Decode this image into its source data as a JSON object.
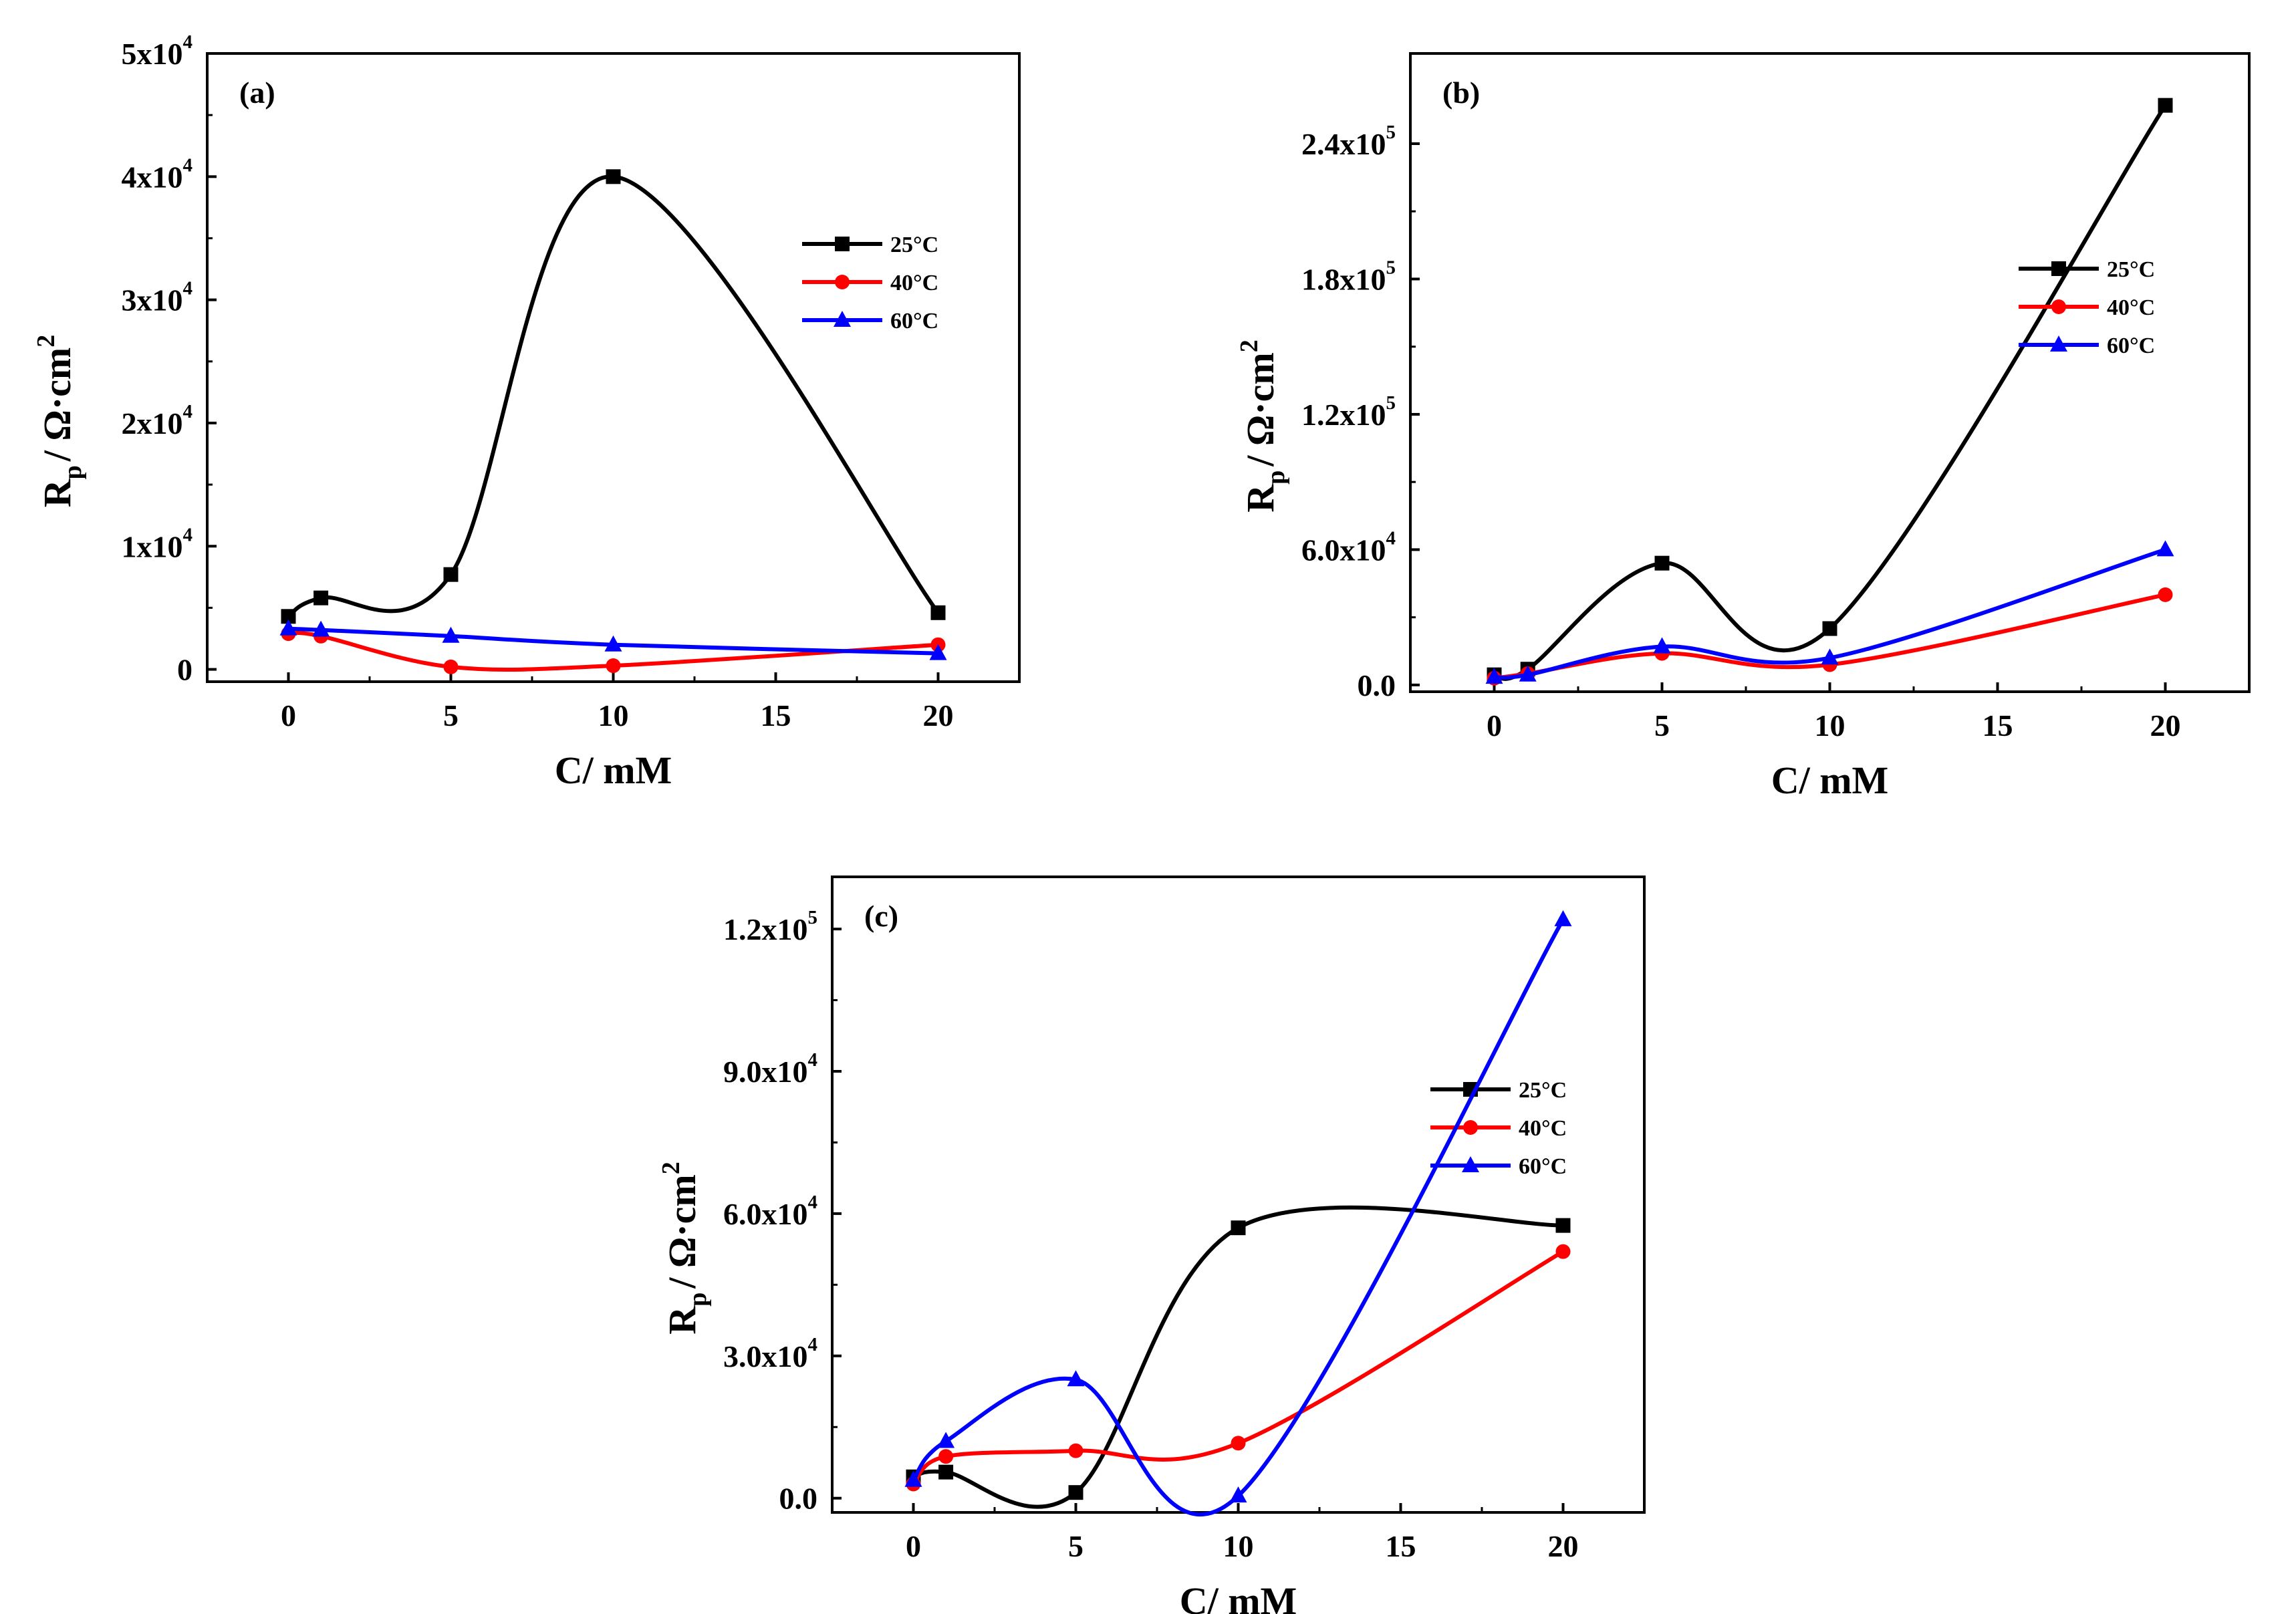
{
  "figure": {
    "panels_count": 3,
    "colors": {
      "25C": "#000000",
      "40C": "#ff0000",
      "60C": "#0000ff"
    }
  },
  "chart_data": [
    {
      "id": "a",
      "type": "line",
      "label": "(a)",
      "xlabel": "C/  mM",
      "ylabel_main": "R",
      "ylabel_sub": "p",
      "ylabel_rest": "/  Ω·cm",
      "ylabel_sup": "2",
      "xlim": [
        -2.5,
        22.5
      ],
      "ylim": [
        -1000,
        50000
      ],
      "xticks": [
        {
          "value": 0,
          "label": "0"
        },
        {
          "value": 5,
          "label": "5"
        },
        {
          "value": 10,
          "label": "10"
        },
        {
          "value": 15,
          "label": "15"
        },
        {
          "value": 20,
          "label": "20"
        }
      ],
      "yticks": [
        {
          "value": 0,
          "base": "0",
          "exp": ""
        },
        {
          "value": 10000,
          "base": "1x10",
          "exp": "4"
        },
        {
          "value": 20000,
          "base": "2x10",
          "exp": "4"
        },
        {
          "value": 30000,
          "base": "3x10",
          "exp": "4"
        },
        {
          "value": 40000,
          "base": "4x10",
          "exp": "4"
        },
        {
          "value": 50000,
          "base": "5x10",
          "exp": "4"
        }
      ],
      "series": [
        {
          "name": "25°C",
          "color": "#000000",
          "marker": "square",
          "x": [
            0,
            1,
            5,
            10,
            20
          ],
          "y": [
            4300,
            5800,
            7700,
            40000,
            4600
          ]
        },
        {
          "name": "40°C",
          "color": "#ff0000",
          "marker": "circle",
          "x": [
            0,
            1,
            5,
            10,
            20
          ],
          "y": [
            2900,
            2700,
            200,
            300,
            2000
          ]
        },
        {
          "name": "60°C",
          "color": "#0000ff",
          "marker": "triangle",
          "x": [
            0,
            1,
            5,
            10,
            20
          ],
          "y": [
            3300,
            3200,
            2700,
            2000,
            1300
          ]
        }
      ],
      "legend_position": "upper-right"
    },
    {
      "id": "b",
      "type": "line",
      "label": "(b)",
      "xlabel": "C/  mM",
      "ylabel_main": "R",
      "ylabel_sub": "p",
      "ylabel_rest": "/  Ω·cm",
      "ylabel_sup": "2",
      "xlim": [
        -2.5,
        22.5
      ],
      "ylim": [
        -3000,
        280000
      ],
      "xticks": [
        {
          "value": 0,
          "label": "0"
        },
        {
          "value": 5,
          "label": "5"
        },
        {
          "value": 10,
          "label": "10"
        },
        {
          "value": 15,
          "label": "15"
        },
        {
          "value": 20,
          "label": "20"
        }
      ],
      "yticks": [
        {
          "value": 0,
          "base": "0.0",
          "exp": ""
        },
        {
          "value": 60000,
          "base": "6.0x10",
          "exp": "4"
        },
        {
          "value": 120000,
          "base": "1.2x10",
          "exp": "5"
        },
        {
          "value": 180000,
          "base": "1.8x10",
          "exp": "5"
        },
        {
          "value": 240000,
          "base": "2.4x10",
          "exp": "5"
        }
      ],
      "series": [
        {
          "name": "25°C",
          "color": "#000000",
          "marker": "square",
          "x": [
            0,
            1,
            5,
            10,
            20
          ],
          "y": [
            4500,
            7000,
            54000,
            25000,
            257000
          ]
        },
        {
          "name": "40°C",
          "color": "#ff0000",
          "marker": "circle",
          "x": [
            0,
            1,
            5,
            10,
            20
          ],
          "y": [
            3000,
            5000,
            14000,
            9000,
            40000
          ]
        },
        {
          "name": "60°C",
          "color": "#0000ff",
          "marker": "triangle",
          "x": [
            0,
            1,
            5,
            10,
            20
          ],
          "y": [
            3500,
            4500,
            17000,
            12000,
            60000
          ]
        }
      ],
      "legend_position": "right"
    },
    {
      "id": "c",
      "type": "line",
      "label": "(c)",
      "xlabel": "C/  mM",
      "ylabel_main": "R",
      "ylabel_sub": "p",
      "ylabel_rest": "/  Ω·cm",
      "ylabel_sup": "2",
      "xlim": [
        -2.5,
        22.5
      ],
      "ylim": [
        -3000,
        131000
      ],
      "xticks": [
        {
          "value": 0,
          "label": "0"
        },
        {
          "value": 5,
          "label": "5"
        },
        {
          "value": 10,
          "label": "10"
        },
        {
          "value": 15,
          "label": "15"
        },
        {
          "value": 20,
          "label": "20"
        }
      ],
      "yticks": [
        {
          "value": 0,
          "base": "0.0",
          "exp": ""
        },
        {
          "value": 30000,
          "base": "3.0x10",
          "exp": "4"
        },
        {
          "value": 60000,
          "base": "6.0x10",
          "exp": "4"
        },
        {
          "value": 90000,
          "base": "9.0x10",
          "exp": "4"
        },
        {
          "value": 120000,
          "base": "1.2x10",
          "exp": "5"
        }
      ],
      "series": [
        {
          "name": "25°C",
          "color": "#000000",
          "marker": "square",
          "x": [
            0,
            1,
            5,
            10,
            20
          ],
          "y": [
            4500,
            5500,
            1200,
            57000,
            57500
          ]
        },
        {
          "name": "40°C",
          "color": "#ff0000",
          "marker": "circle",
          "x": [
            0,
            1,
            5,
            10,
            20
          ],
          "y": [
            3000,
            8800,
            10000,
            11600,
            52000
          ]
        },
        {
          "name": "60°C",
          "color": "#0000ff",
          "marker": "triangle",
          "x": [
            0,
            1,
            5,
            10,
            20
          ],
          "y": [
            3800,
            12000,
            25000,
            500,
            122000
          ]
        }
      ],
      "legend_position": "right"
    }
  ]
}
